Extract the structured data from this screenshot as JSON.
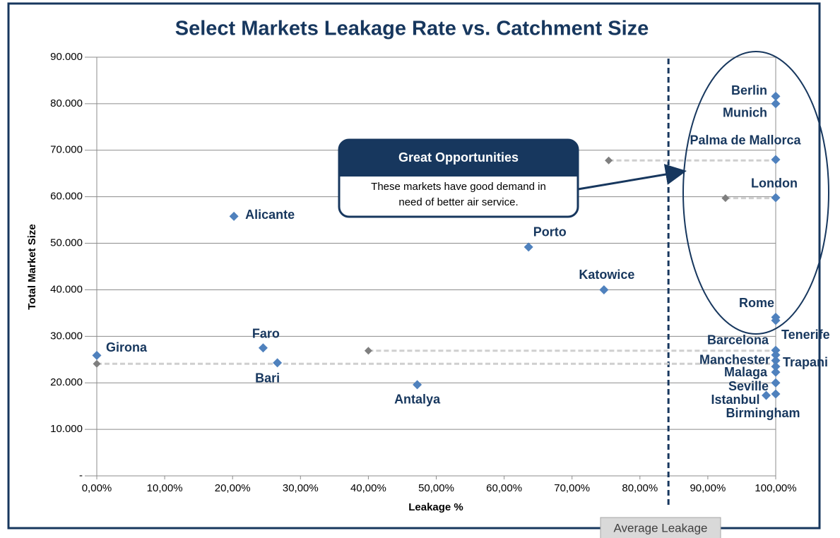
{
  "chart_data": {
    "type": "scatter",
    "title": "Select Markets Leakage Rate vs. Catchment Size",
    "x_label": "Leakage %",
    "y_label": "Total Market Size",
    "xlim": [
      0,
      100
    ],
    "ylim": [
      0,
      90000
    ],
    "xticks": [
      {
        "value": 0,
        "label": "0,00%"
      },
      {
        "value": 10,
        "label": "10,00%"
      },
      {
        "value": 20,
        "label": "20,00%"
      },
      {
        "value": 30,
        "label": "30,00%"
      },
      {
        "value": 40,
        "label": "40,00%"
      },
      {
        "value": 50,
        "label": "50,00%"
      },
      {
        "value": 60,
        "label": "60,00%"
      },
      {
        "value": 70,
        "label": "70,00%"
      },
      {
        "value": 80,
        "label": "80,00%"
      },
      {
        "value": 90,
        "label": "90,00%"
      },
      {
        "value": 100,
        "label": "100,00%"
      }
    ],
    "yticks": [
      {
        "value": 0,
        "label": "-"
      },
      {
        "value": 10000,
        "label": "10.000"
      },
      {
        "value": 20000,
        "label": "20.000"
      },
      {
        "value": 30000,
        "label": "30.000"
      },
      {
        "value": 40000,
        "label": "40.000"
      },
      {
        "value": 50000,
        "label": "50.000"
      },
      {
        "value": 60000,
        "label": "60.000"
      },
      {
        "value": 70000,
        "label": "70.000"
      },
      {
        "value": 80000,
        "label": "80.000"
      },
      {
        "value": 90000,
        "label": "90.000"
      }
    ],
    "grid": true,
    "series": [
      {
        "color": "#4f81bd",
        "labels": [
          "Berlin",
          "Munich",
          "Palma de Mallorca",
          "London",
          "Alicante",
          "Porto",
          "Katowice",
          "Rome",
          null,
          "Tenerife",
          "Barcelona",
          "Manchester",
          "Trapani",
          "Malaga",
          "Seville",
          "Istanbul",
          "Birmingham",
          "Girona",
          "Faro",
          "Bari",
          "Antalya"
        ],
        "x": [
          100,
          100,
          100,
          100,
          20.2,
          63.6,
          74.7,
          100,
          100,
          100,
          100,
          100,
          100,
          100,
          100,
          98.6,
          100,
          0,
          24.5,
          26.6,
          47.2
        ],
        "y": [
          81600,
          80000,
          68000,
          59800,
          55800,
          49200,
          40000,
          34100,
          33400,
          27000,
          26000,
          24800,
          23500,
          22300,
          20000,
          17300,
          17600,
          25900,
          27500,
          24300,
          19600
        ]
      },
      {
        "color": "#7f7f7f",
        "x": [
          75.4,
          92.6,
          40,
          0
        ],
        "y": [
          67800,
          59700,
          26900,
          24100
        ]
      }
    ],
    "average_line": {
      "x": 84.2,
      "label": "Average Leakage"
    },
    "callout": {
      "title": "Great Opportunities",
      "lines": [
        "These markets have good demand in",
        "need of better air service."
      ]
    }
  }
}
